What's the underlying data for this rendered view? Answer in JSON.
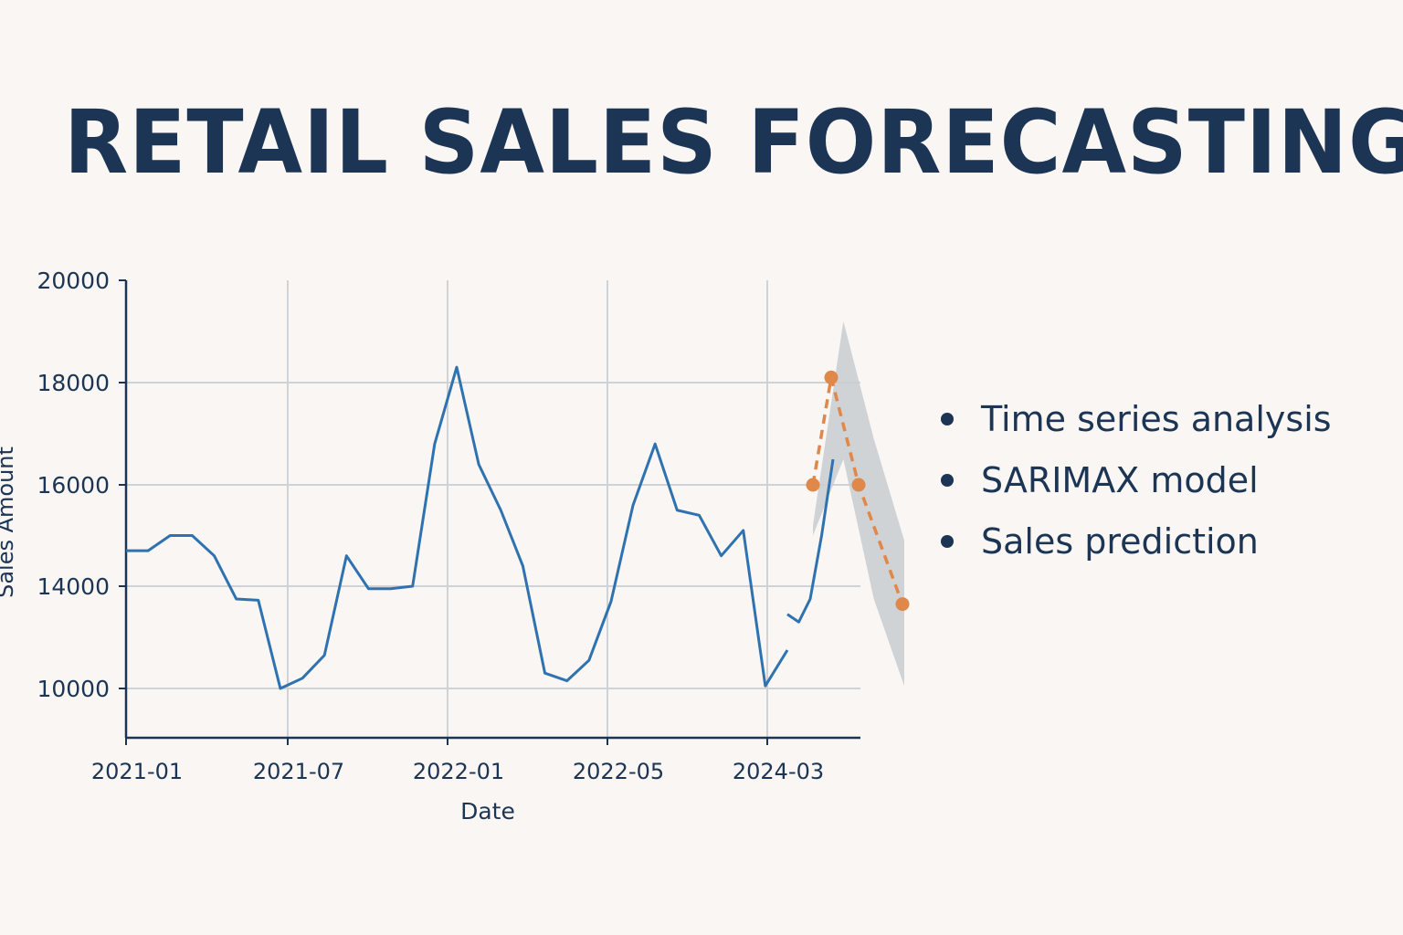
{
  "title": "RETAIL SALES FORECASTING",
  "bullets": [
    "Time series analysis",
    "SARIMAX model",
    "Sales prediction"
  ],
  "colors": {
    "text": "#1c3554",
    "background": "#f9f6f3",
    "actual": "#2f72b0",
    "forecast": "#e0874a",
    "confidence": "#c9cdd0",
    "grid": "#cfd3d6"
  },
  "chart_data": {
    "type": "line",
    "xlabel": "Date",
    "ylabel": "Sales Amount",
    "x_ticks": [
      "2021-01",
      "2021-07",
      "2022-01",
      "2022-05",
      "2024-03"
    ],
    "y_ticks": [
      10000,
      14000,
      16000,
      18000,
      20000
    ],
    "grid": true,
    "series": [
      {
        "style": "solid",
        "x": [
          "2021-01",
          "2021-02",
          "2021-03",
          "2021-04",
          "2021-05",
          "2021-06",
          "2021-07",
          "2021-08",
          "2021-09",
          "2021-10",
          "2021-11",
          "2021-12",
          "2022-01",
          "2022-02",
          "2022-03",
          "2022-04",
          "2022-05",
          "2022-06",
          "2022-07",
          "2022-08",
          "2022-09",
          "2022-10",
          "2022-11",
          "2022-12",
          "2024-01",
          "2024-02",
          "2024-03",
          "2024-04",
          "2024-05",
          "2024-06",
          "2024-07"
        ],
        "values": [
          14700,
          14700,
          15000,
          15000,
          14600,
          13500,
          13450,
          10000,
          10400,
          11300,
          14600,
          13900,
          13900,
          14000,
          16800,
          18300,
          16400,
          15500,
          14400,
          10600,
          10300,
          11100,
          13400,
          15600,
          16800,
          15500,
          15400,
          14600,
          15100,
          10100,
          11500
        ]
      },
      {
        "style": "solid",
        "x": [
          "2024-03",
          "2024-04",
          "2024-05",
          "2024-06",
          "2024-07"
        ],
        "values": [
          12900,
          12600,
          13500,
          15000,
          16500
        ]
      },
      {
        "style": "dashed",
        "x": [
          "2024-05",
          "2024-06",
          "2024-07",
          "2024-08"
        ],
        "values": [
          16000,
          18100,
          16000,
          13300
        ]
      }
    ],
    "confidence_band": {
      "x": [
        "2024-05",
        "2024-06",
        "2024-07",
        "2024-08"
      ],
      "upper": [
        15200,
        19200,
        16900,
        14900
      ],
      "lower": [
        15000,
        16500,
        13500,
        10100
      ]
    }
  }
}
